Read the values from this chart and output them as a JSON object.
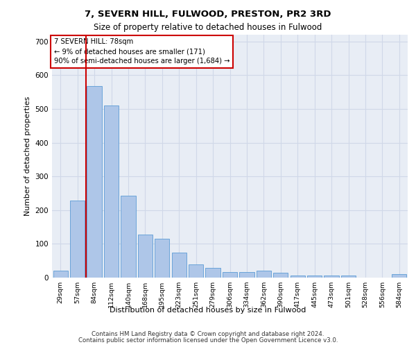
{
  "title1": "7, SEVERN HILL, FULWOOD, PRESTON, PR2 3RD",
  "title2": "Size of property relative to detached houses in Fulwood",
  "xlabel": "Distribution of detached houses by size in Fulwood",
  "ylabel": "Number of detached properties",
  "bar_labels": [
    "29sqm",
    "57sqm",
    "84sqm",
    "112sqm",
    "140sqm",
    "168sqm",
    "195sqm",
    "223sqm",
    "251sqm",
    "279sqm",
    "306sqm",
    "334sqm",
    "362sqm",
    "390sqm",
    "417sqm",
    "445sqm",
    "473sqm",
    "501sqm",
    "528sqm",
    "556sqm",
    "584sqm"
  ],
  "bar_heights": [
    20,
    228,
    568,
    510,
    242,
    128,
    116,
    75,
    40,
    28,
    16,
    16,
    20,
    15,
    6,
    6,
    6,
    6,
    0,
    0,
    10
  ],
  "bar_color": "#aec6e8",
  "bar_edge_color": "#5b9bd5",
  "grid_color": "#d0d8e8",
  "background_color": "#e8edf5",
  "red_line_color": "#cc0000",
  "red_line_x": 1.5,
  "annotation_line1": "7 SEVERN HILL: 78sqm",
  "annotation_line2": "← 9% of detached houses are smaller (171)",
  "annotation_line3": "90% of semi-detached houses are larger (1,684) →",
  "annotation_box_edge": "#cc0000",
  "ylim_max": 720,
  "yticks": [
    0,
    100,
    200,
    300,
    400,
    500,
    600,
    700
  ],
  "footer1": "Contains HM Land Registry data © Crown copyright and database right 2024.",
  "footer2": "Contains public sector information licensed under the Open Government Licence v3.0."
}
